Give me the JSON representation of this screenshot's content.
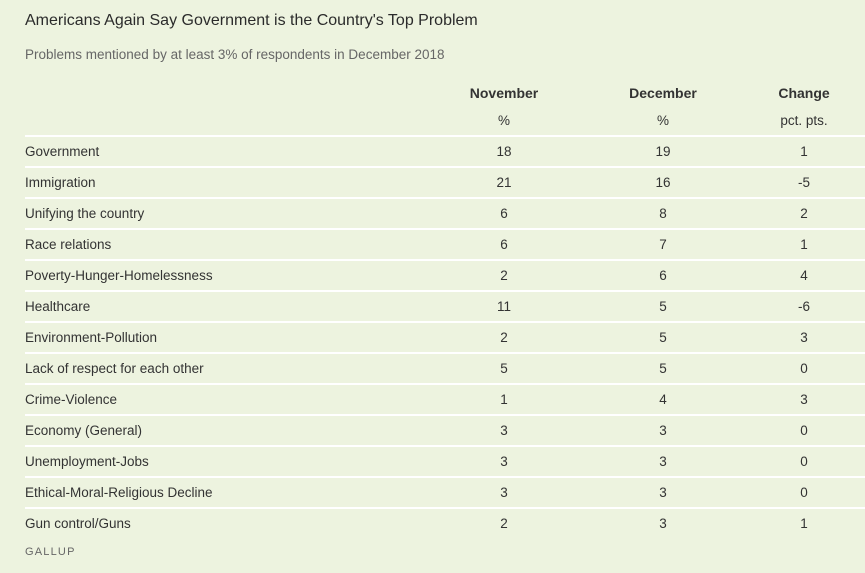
{
  "title": "Americans Again Say Government is the Country's Top Problem",
  "subtitle": "Problems mentioned by at least 3% of respondents in December 2018",
  "source": "GALLUP",
  "colors": {
    "background": "#edf3df",
    "rule": "#ffffff",
    "text": "#333333"
  },
  "chart_data": {
    "type": "table",
    "columns": [
      {
        "header": "",
        "unit": ""
      },
      {
        "header": "November",
        "unit": "%"
      },
      {
        "header": "December",
        "unit": "%"
      },
      {
        "header": "Change",
        "unit": "pct. pts."
      }
    ],
    "rows": [
      [
        "Government",
        "18",
        "19",
        "1"
      ],
      [
        "Immigration",
        "21",
        "16",
        "-5"
      ],
      [
        "Unifying the country",
        "6",
        "8",
        "2"
      ],
      [
        "Race relations",
        "6",
        "7",
        "1"
      ],
      [
        "Poverty-Hunger-Homelessness",
        "2",
        "6",
        "4"
      ],
      [
        "Healthcare",
        "11",
        "5",
        "-6"
      ],
      [
        "Environment-Pollution",
        "2",
        "5",
        "3"
      ],
      [
        "Lack of respect for each other",
        "5",
        "5",
        "0"
      ],
      [
        "Crime-Violence",
        "1",
        "4",
        "3"
      ],
      [
        "Economy (General)",
        "3",
        "3",
        "0"
      ],
      [
        "Unemployment-Jobs",
        "3",
        "3",
        "0"
      ],
      [
        "Ethical-Moral-Religious Decline",
        "3",
        "3",
        "0"
      ],
      [
        "Gun control/Guns",
        "2",
        "3",
        "1"
      ]
    ]
  }
}
